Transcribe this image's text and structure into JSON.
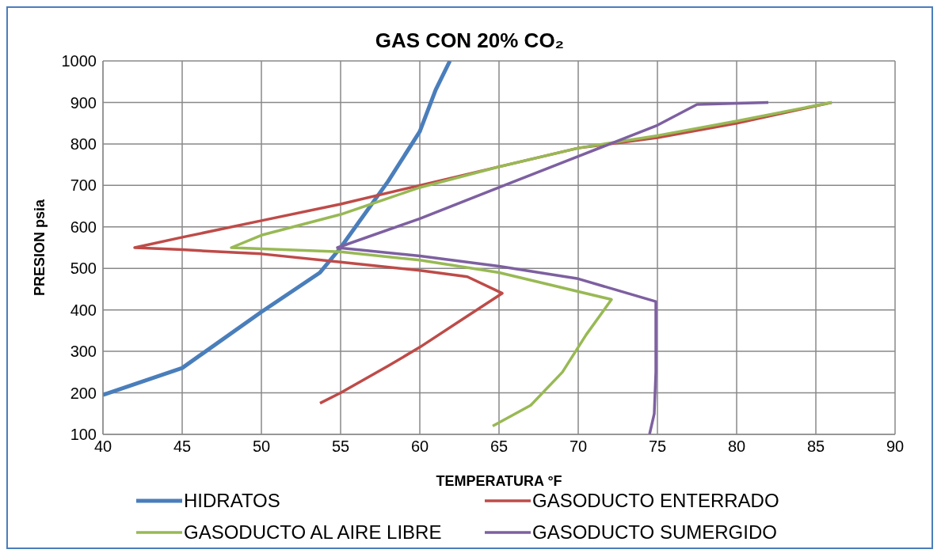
{
  "chart_data": {
    "type": "line",
    "title": "GAS CON 20% CO₂",
    "xlabel": "TEMPERATURA °F",
    "ylabel": "PRESION psia",
    "xlim": [
      40,
      90
    ],
    "xticks": [
      40,
      45,
      50,
      55,
      60,
      65,
      70,
      75,
      80,
      85,
      90
    ],
    "ylim": [
      100,
      1000
    ],
    "yticks": [
      100,
      200,
      300,
      400,
      500,
      600,
      700,
      800,
      900,
      1000
    ],
    "grid": true,
    "legend": "bottom",
    "marker": "none",
    "series": [
      {
        "name": "HIDRATOS",
        "color": "#4a7ebb",
        "x": [
          40,
          45,
          50,
          53.7,
          55,
          58,
          60,
          61,
          61.9
        ],
        "values": [
          195,
          260,
          395,
          490,
          550,
          710,
          830,
          930,
          1000
        ]
      },
      {
        "name": "GASODUCTO ENTERRADO",
        "color": "#be4b48",
        "x": [
          53.7,
          55,
          58,
          60,
          63,
          65.2,
          63,
          60,
          55,
          50,
          45,
          42,
          45,
          50,
          55,
          60,
          70,
          75,
          80,
          86
        ],
        "values": [
          175,
          200,
          265,
          310,
          385,
          440,
          480,
          495,
          515,
          535,
          545,
          550,
          575,
          615,
          655,
          700,
          790,
          815,
          850,
          900
        ]
      },
      {
        "name": "GASODUCTO AL AIRE LIBRE",
        "color": "#98b954",
        "x": [
          64.6,
          67,
          69,
          70,
          70.5,
          72.1,
          65,
          60,
          55,
          48.1,
          50,
          55,
          60,
          65,
          70,
          75,
          80,
          86
        ],
        "values": [
          120,
          170,
          250,
          310,
          340,
          425,
          490,
          520,
          540,
          550,
          580,
          630,
          695,
          745,
          790,
          820,
          855,
          900
        ]
      },
      {
        "name": "GASODUCTO SUMERGIDO",
        "color": "#7d60a0",
        "x": [
          74.5,
          74.8,
          74.9,
          74.9,
          70,
          65,
          60,
          54.8,
          60,
          65,
          70,
          75,
          77.5,
          82
        ],
        "values": [
          100,
          150,
          250,
          420,
          475,
          505,
          530,
          550,
          620,
          695,
          770,
          845,
          895,
          900
        ]
      }
    ]
  }
}
